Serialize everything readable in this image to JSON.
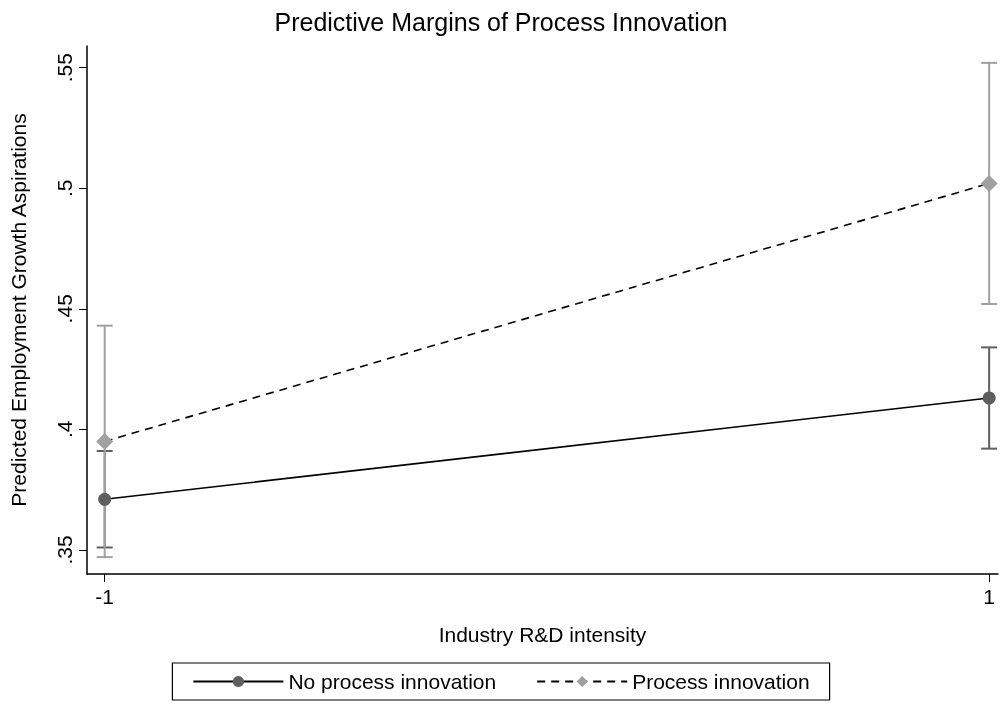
{
  "chart_data": {
    "type": "line",
    "title": "Predictive Margins of Process Innovation",
    "xlabel": "Industry R&D intensity",
    "ylabel": "Predicted Employment Growth Aspirations",
    "x": [
      -1,
      1
    ],
    "xlim": [
      -1.04,
      1.02
    ],
    "xticks": [
      -1,
      1
    ],
    "ylim": [
      0.34,
      0.559
    ],
    "yticks": [
      {
        "value": 0.35,
        "label": ".35"
      },
      {
        "value": 0.4,
        "label": ".4"
      },
      {
        "value": 0.45,
        "label": ".45"
      },
      {
        "value": 0.5,
        "label": ".5"
      },
      {
        "value": 0.55,
        "label": ".55"
      }
    ],
    "series": [
      {
        "name": "No process innovation",
        "color": "#5f5f5f",
        "marker": "circle",
        "line_style": "solid",
        "values": [
          0.371,
          0.413
        ],
        "errors": [
          [
            0.351,
            0.391
          ],
          [
            0.392,
            0.434
          ]
        ]
      },
      {
        "name": "Process innovation",
        "color": "#a0a0a0",
        "marker": "diamond",
        "line_style": "dashed",
        "values": [
          0.395,
          0.502
        ],
        "errors": [
          [
            0.347,
            0.443
          ],
          [
            0.452,
            0.552
          ]
        ]
      }
    ],
    "grid": false,
    "legend": "bottom"
  }
}
